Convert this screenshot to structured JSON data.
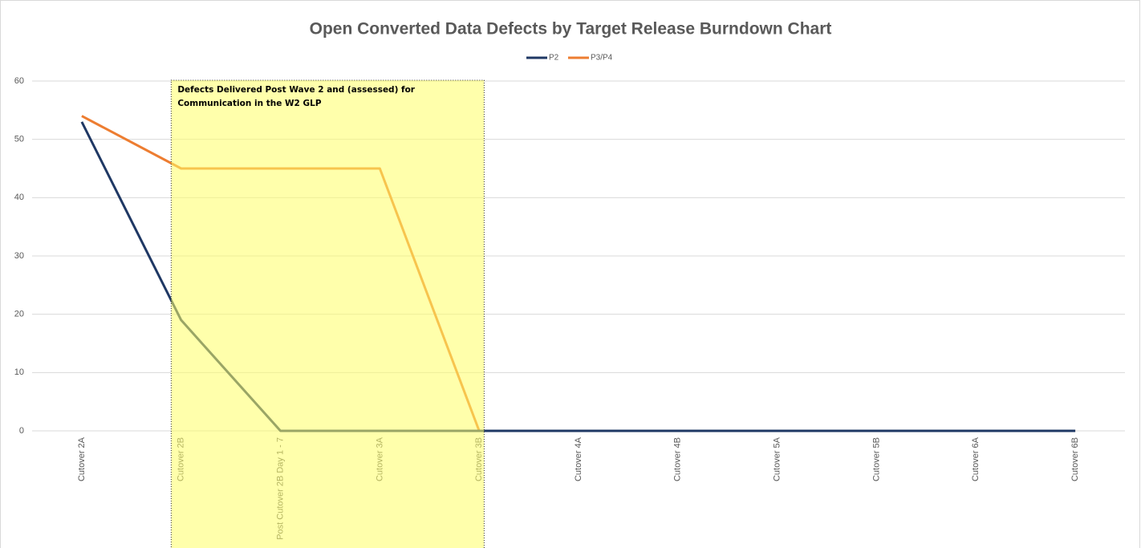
{
  "chart_data": {
    "type": "line",
    "title": "Open Converted Data Defects by Target Release Burndown Chart",
    "annotation": "Defects Delivered Post Wave 2 and (assessed) for Communication in the W2 GLP",
    "categories": [
      "Cutover 2A",
      "Cutover 2B",
      "Post Cutover 2B Day 1 - 7",
      "Cutover 3A",
      "Cutover 3B",
      "Cutover 4A",
      "Cutover 4B",
      "Cutover 5A",
      "Cutover 5B",
      "Cutover 6A",
      "Cutover 6B"
    ],
    "series": [
      {
        "name": "P2",
        "color": "#1f3864",
        "values": [
          53,
          19,
          0,
          0,
          0,
          0,
          0,
          0,
          0,
          0,
          0
        ]
      },
      {
        "name": "P3/P4",
        "color": "#ed7d31",
        "values": [
          54,
          45,
          45,
          45,
          0,
          0,
          0,
          0,
          0,
          0,
          0
        ]
      }
    ],
    "ylim": [
      0,
      60
    ],
    "yticks": [
      0,
      10,
      20,
      30,
      40,
      50,
      60
    ],
    "grid": true,
    "legend": "top"
  }
}
